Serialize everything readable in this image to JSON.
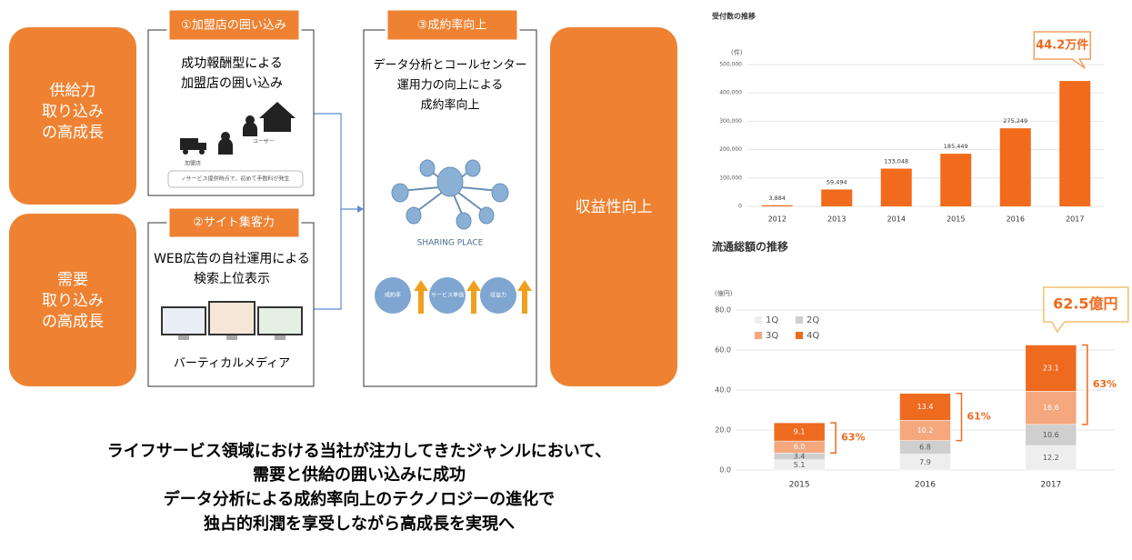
{
  "diagram": {
    "left_boxes": [
      {
        "lines": [
          "供給力",
          "取り込み",
          "の高成長"
        ]
      },
      {
        "lines": [
          "需要",
          "取り込み",
          "の高成長"
        ]
      }
    ],
    "panels": [
      {
        "tab": "①加盟店の囲い込み",
        "lines": [
          "成功報酬型による",
          "加盟店の囲い込み"
        ],
        "notes": [
          "加盟店",
          "ユーザー",
          "✓サービス提供時点で、初めて手数料が発生"
        ]
      },
      {
        "tab": "②サイト集客力",
        "lines": [
          "WEB広告の自社運用による",
          "検索上位表示"
        ],
        "caption": "バーティカルメディア"
      },
      {
        "tab": "③成約率向上",
        "lines": [
          "データ分析とコールセンター",
          "運用力の向上による",
          "成約率向上"
        ],
        "logo": "SHARING PLACE",
        "circles": [
          "成約率",
          "サービス単価",
          "収益力"
        ]
      }
    ],
    "right_box": "収益性向上",
    "footer": [
      "ライフサービス領域における当社が注力してきたジャンルにおいて、",
      "需要と供給の囲い込みに成功",
      "データ分析による成約率向上のテクノロジーの進化で",
      "独占的利潤を享受しながら高成長を実現へ"
    ]
  },
  "chart_data": [
    {
      "type": "bar",
      "title": "受付数の推移",
      "y_unit": "(件)",
      "annotation": "44.2万件",
      "categories": [
        "2012",
        "2013",
        "2014",
        "2015",
        "2016",
        "2017"
      ],
      "values": [
        3884,
        59494,
        133048,
        185449,
        275249,
        442000
      ],
      "value_labels": [
        "3,884",
        "59,494",
        "133,048",
        "185,449",
        "275,249",
        null
      ],
      "color": "#f26a1b",
      "ylim": [
        0,
        500000
      ],
      "yticks": [
        0,
        {
          "value": 100000,
          "label": "100,000"
        },
        {
          "value": 200000,
          "label": "200,000"
        },
        {
          "value": 300000,
          "label": "300,000"
        },
        {
          "value": 400000,
          "label": "400,000"
        },
        {
          "value": 500000,
          "label": "500,000"
        }
      ],
      "grid": true
    },
    {
      "type": "stacked_bar",
      "title": "流通総額の推移",
      "y_unit": "(億円)",
      "annotation": "62.5億円",
      "categories": [
        "2015",
        "2016",
        "2017"
      ],
      "series": [
        {
          "name": "1Q",
          "color": "#eeeeee",
          "values": [
            5.1,
            7.9,
            12.2
          ],
          "value_labels": [
            "5.1",
            "7.9",
            "12.2"
          ]
        },
        {
          "name": "2Q",
          "color": "#cfcfcf",
          "values": [
            3.4,
            6.8,
            10.6
          ],
          "value_labels": [
            "3.4",
            "6.8",
            "10.6"
          ]
        },
        {
          "name": "3Q",
          "color": "#f5a77d",
          "values": [
            6,
            10.2,
            16.6
          ],
          "value_labels": [
            "6.0",
            "10.2",
            "16.6"
          ]
        },
        {
          "name": "4Q",
          "color": "#ee6a1f",
          "values": [
            9.1,
            13.4,
            23.1
          ],
          "value_labels": [
            "9.1",
            "13.4",
            "23.1"
          ]
        }
      ],
      "bracket_labels": [
        "63%",
        "61%",
        "63%"
      ],
      "ylim": [
        0,
        80
      ],
      "yticks": [
        {
          "value": 0,
          "label": "0.0"
        },
        {
          "value": 20,
          "label": "20.0"
        },
        {
          "value": 40,
          "label": "40.0"
        },
        {
          "value": 60,
          "label": "60.0"
        },
        {
          "value": 80,
          "label": "80.0"
        }
      ],
      "grid": true,
      "legend": "top-left"
    }
  ]
}
